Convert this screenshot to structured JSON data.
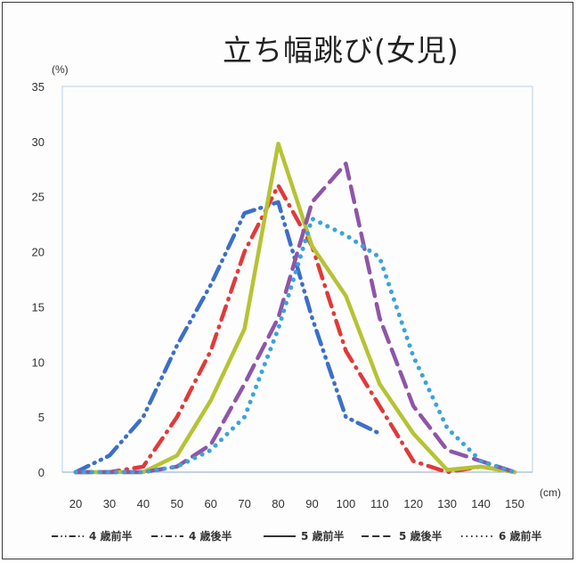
{
  "chart_data": {
    "type": "line",
    "title": "立ち幅跳び(女児)",
    "ylabel": "(%)",
    "xlabel": "(cm)",
    "ylim": [
      0,
      35
    ],
    "yticks": [
      "0",
      "5",
      "10",
      "15",
      "20",
      "25",
      "30",
      "35"
    ],
    "xticks": [
      "20",
      "30",
      "40",
      "50",
      "60",
      "70",
      "80",
      "90",
      "100",
      "110",
      "120",
      "130",
      "140",
      "150"
    ],
    "grid": false,
    "legend_position": "bottom",
    "x": [
      20,
      30,
      40,
      50,
      60,
      70,
      80,
      90,
      100,
      110,
      120,
      130,
      140,
      150
    ],
    "series": [
      {
        "name": "4 歳前半",
        "color": "#3b6fc9",
        "dash": "dashdotdot",
        "values": [
          0,
          1.5,
          5,
          11.5,
          17,
          23.5,
          24.5,
          14,
          5,
          3.5,
          null,
          null,
          null,
          null
        ]
      },
      {
        "name": "4 歳後半",
        "color": "#e03a3a",
        "dash": "dashdot",
        "values": [
          0,
          0,
          0.5,
          5,
          11,
          20,
          26,
          20.5,
          11,
          6,
          1,
          0,
          0.5,
          0
        ]
      },
      {
        "name": "5 歳前半",
        "color": "#b5c334",
        "dash": "solid",
        "values": [
          0,
          0,
          0,
          1.5,
          6.5,
          13,
          29.8,
          20.5,
          16,
          8,
          3.5,
          0.2,
          0.5,
          0
        ]
      },
      {
        "name": "5 歳後半",
        "color": "#8f55a8",
        "dash": "dash",
        "values": [
          0,
          0,
          0,
          0.5,
          2.5,
          8,
          14,
          24.5,
          28,
          14,
          6,
          2,
          1,
          0
        ]
      },
      {
        "name": "6 歳前半",
        "color": "#3aa4d8",
        "dash": "dot",
        "values": [
          0,
          0,
          0,
          0.5,
          2,
          5,
          13,
          23,
          21.5,
          19.5,
          10.5,
          4,
          1,
          0
        ]
      }
    ]
  }
}
